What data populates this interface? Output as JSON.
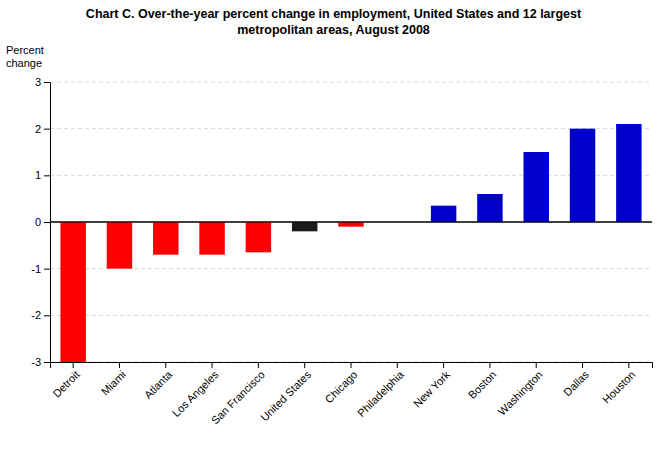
{
  "chart_data": {
    "type": "bar",
    "title": "Chart C. Over-the-year percent change in employment, United States and 12 largest\nmetropolitan areas, August 2008",
    "ylabel": "Percent\nchange",
    "categories": [
      "Detroit",
      "Miami",
      "Atlanta",
      "Los Angeles",
      "San Francisco",
      "United States",
      "Chicago",
      "Philadelphia",
      "New York",
      "Boston",
      "Washington",
      "Dallas",
      "Houston"
    ],
    "values": [
      -3.0,
      -1.0,
      -0.7,
      -0.7,
      -0.65,
      -0.2,
      -0.1,
      0.0,
      0.35,
      0.6,
      1.5,
      2.0,
      2.1
    ],
    "colors": [
      "#ff0000",
      "#ff0000",
      "#ff0000",
      "#ff0000",
      "#ff0000",
      "#1a1a1a",
      "#ff0000",
      "#ff0000",
      "#0000cc",
      "#0000cc",
      "#0000cc",
      "#0000cc",
      "#0000cc"
    ],
    "ylim": [
      -3.0,
      3.0
    ],
    "yticks": [
      -3,
      -2,
      -1,
      0,
      1,
      2,
      3
    ],
    "grid": true
  }
}
